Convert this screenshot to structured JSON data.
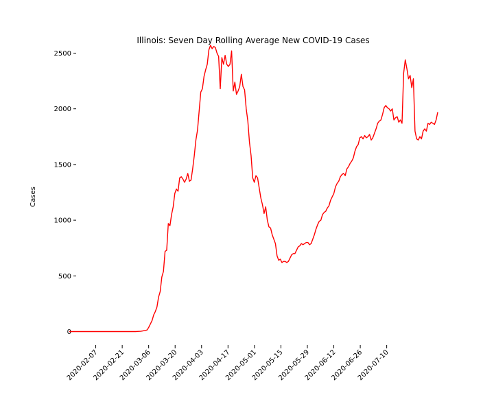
{
  "chart_data": {
    "type": "line",
    "title": "Illinois: Seven Day Rolling Average New COVID-19 Cases",
    "xlabel": "",
    "ylabel": "Cases",
    "grid": false,
    "legend": "none",
    "line_color": "#ff0000",
    "x_start": "2020-01-24",
    "x_end": "2020-08-06",
    "xlim": [
      "2020-01-20",
      "2020-08-10"
    ],
    "ylim": [
      -120,
      2700
    ],
    "x_ticks": [
      "2020-02-07",
      "2020-02-21",
      "2020-03-06",
      "2020-03-20",
      "2020-04-03",
      "2020-04-17",
      "2020-05-01",
      "2020-05-15",
      "2020-05-29",
      "2020-06-12",
      "2020-06-26",
      "2020-07-10"
    ],
    "y_ticks": [
      0,
      500,
      1000,
      1500,
      2000,
      2500
    ],
    "series": [
      {
        "values": [
          0,
          0,
          0,
          0,
          0,
          0,
          0,
          0,
          0,
          0,
          0,
          0,
          0,
          0,
          0,
          0,
          0,
          0,
          0,
          0,
          0,
          0,
          0,
          0,
          0,
          0,
          0,
          0,
          0,
          0,
          0,
          0,
          0,
          0,
          0,
          0,
          0,
          0,
          0,
          0,
          0,
          0,
          1,
          2,
          3,
          5,
          8,
          10,
          15,
          40,
          70,
          100,
          150,
          180,
          220,
          310,
          360,
          490,
          540,
          720,
          730,
          970,
          950,
          1050,
          1120,
          1240,
          1280,
          1260,
          1380,
          1390,
          1370,
          1340,
          1370,
          1420,
          1350,
          1360,
          1460,
          1580,
          1720,
          1810,
          1980,
          2150,
          2180,
          2290,
          2350,
          2400,
          2530,
          2570,
          2540,
          2560,
          2550,
          2500,
          2470,
          2180,
          2460,
          2400,
          2480,
          2400,
          2380,
          2400,
          2520,
          2160,
          2240,
          2130,
          2160,
          2200,
          2310,
          2200,
          2170,
          2000,
          1890,
          1700,
          1580,
          1380,
          1340,
          1400,
          1380,
          1290,
          1200,
          1140,
          1060,
          1120,
          1000,
          940,
          930,
          870,
          830,
          790,
          680,
          640,
          650,
          620,
          630,
          630,
          620,
          630,
          660,
          690,
          700,
          700,
          730,
          760,
          770,
          790,
          780,
          790,
          800,
          800,
          780,
          790,
          830,
          870,
          920,
          960,
          990,
          1000,
          1050,
          1070,
          1080,
          1110,
          1130,
          1180,
          1210,
          1240,
          1300,
          1330,
          1350,
          1390,
          1410,
          1420,
          1400,
          1460,
          1480,
          1510,
          1530,
          1560,
          1620,
          1660,
          1680,
          1740,
          1750,
          1730,
          1760,
          1740,
          1750,
          1770,
          1720,
          1740,
          1780,
          1820,
          1870,
          1890,
          1900,
          1950,
          2010,
          2030,
          2010,
          2000,
          1980,
          2000,
          1900,
          1920,
          1930,
          1880,
          1900,
          1870,
          2320,
          2440,
          2360,
          2270,
          2300,
          2190,
          2270,
          1800,
          1730,
          1720,
          1750,
          1730,
          1800,
          1820,
          1800,
          1870,
          1860,
          1880,
          1870,
          1860,
          1900,
          1970
        ]
      }
    ]
  }
}
